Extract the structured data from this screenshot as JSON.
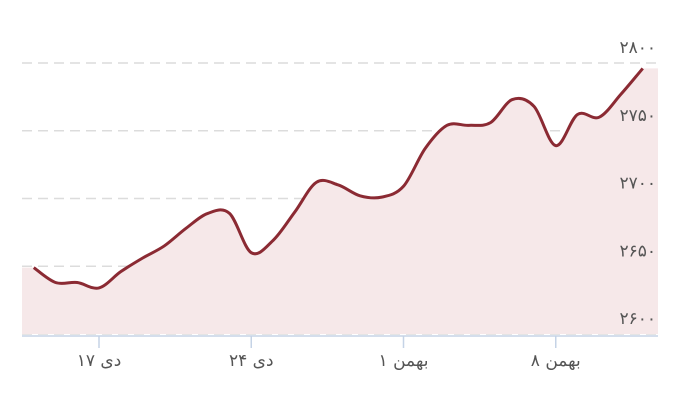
{
  "chart_data": {
    "type": "line",
    "categories": [
      null,
      null,
      null,
      "دی ۱۷",
      null,
      null,
      null,
      null,
      null,
      null,
      "دی ۲۴",
      null,
      null,
      null,
      null,
      null,
      null,
      "بهمن ۱",
      null,
      null,
      null,
      null,
      null,
      null,
      "بهمن ۸",
      null,
      null,
      null,
      null
    ],
    "series": [
      {
        "color": "#8b2a33",
        "values": [
          2649,
          2638,
          2638,
          2634,
          2646,
          2656,
          2665,
          2678,
          2689,
          2689,
          2660,
          2669,
          2690,
          2712,
          2710,
          2702,
          2701,
          2709,
          2737,
          2754,
          2754,
          2756,
          2773,
          2768,
          2739,
          2762,
          2760,
          2777,
          2796
        ]
      }
    ],
    "ylim": [
      2600,
      2800
    ],
    "yticks": [
      {
        "value": 2600,
        "label": "۲۶۰۰"
      },
      {
        "value": 2650,
        "label": "۲۶۵۰"
      },
      {
        "value": 2700,
        "label": "۲۷۰۰"
      },
      {
        "value": 2750,
        "label": "۲۷۵۰"
      },
      {
        "value": 2800,
        "label": "۲۸۰۰"
      }
    ],
    "grid": true,
    "fill": "#f6e8e9"
  }
}
